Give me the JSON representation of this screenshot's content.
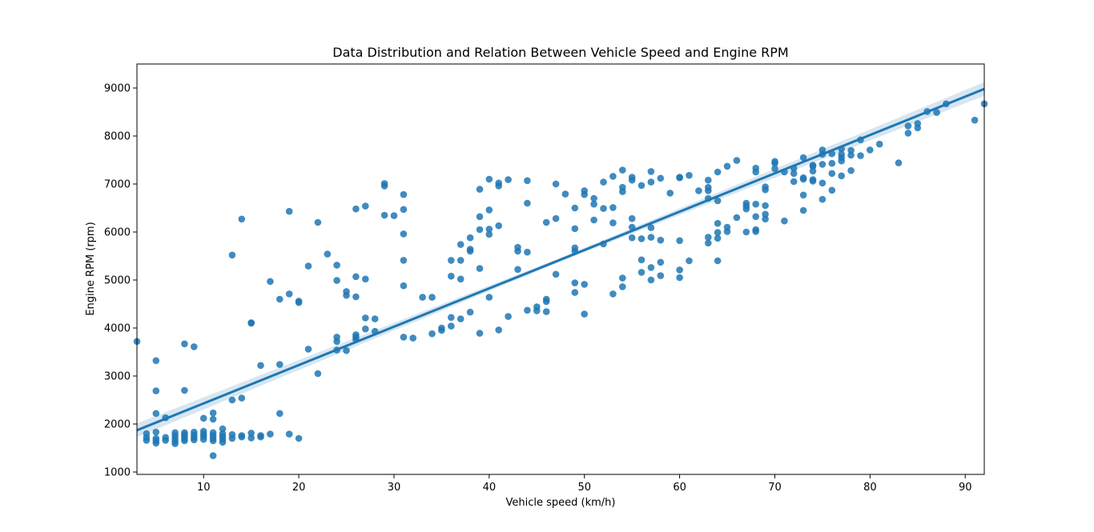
{
  "chart_data": {
    "type": "scatter",
    "title": "Data Distribution and Relation Between Vehicle Speed and Engine RPM",
    "xlabel": "Vehicle speed (km/h)",
    "ylabel": "Engine RPM (rpm)",
    "xlim": [
      3,
      92
    ],
    "ylim": [
      950,
      9500
    ],
    "xticks": [
      10,
      20,
      30,
      40,
      50,
      60,
      70,
      80,
      90
    ],
    "yticks": [
      1000,
      2000,
      3000,
      4000,
      5000,
      6000,
      7000,
      8000,
      9000
    ],
    "grid": false,
    "colors": {
      "points": "#1f77b4",
      "line": "#1f77b4",
      "band": "#1f77b4"
    },
    "regression": {
      "x": [
        3,
        92
      ],
      "y": [
        1870,
        8980
      ]
    },
    "points": [
      [
        3,
        3720
      ],
      [
        4,
        1800
      ],
      [
        4,
        1720
      ],
      [
        4,
        1660
      ],
      [
        5,
        3320
      ],
      [
        5,
        2690
      ],
      [
        5,
        2220
      ],
      [
        5,
        1830
      ],
      [
        5,
        1700
      ],
      [
        5,
        1650
      ],
      [
        5,
        1600
      ],
      [
        6,
        2130
      ],
      [
        6,
        1720
      ],
      [
        6,
        1660
      ],
      [
        7,
        1820
      ],
      [
        7,
        1760
      ],
      [
        7,
        1700
      ],
      [
        7,
        1640
      ],
      [
        7,
        1590
      ],
      [
        8,
        3670
      ],
      [
        8,
        2700
      ],
      [
        8,
        1820
      ],
      [
        8,
        1780
      ],
      [
        8,
        1740
      ],
      [
        8,
        1690
      ],
      [
        8,
        1650
      ],
      [
        9,
        3610
      ],
      [
        9,
        1830
      ],
      [
        9,
        1770
      ],
      [
        9,
        1720
      ],
      [
        9,
        1670
      ],
      [
        10,
        2120
      ],
      [
        10,
        1850
      ],
      [
        10,
        1790
      ],
      [
        10,
        1740
      ],
      [
        10,
        1680
      ],
      [
        11,
        2230
      ],
      [
        11,
        2100
      ],
      [
        11,
        1820
      ],
      [
        11,
        1760
      ],
      [
        11,
        1700
      ],
      [
        11,
        1650
      ],
      [
        11,
        1340
      ],
      [
        12,
        1900
      ],
      [
        12,
        1800
      ],
      [
        12,
        1740
      ],
      [
        12,
        1680
      ],
      [
        12,
        1620
      ],
      [
        13,
        5520
      ],
      [
        13,
        2500
      ],
      [
        13,
        1780
      ],
      [
        13,
        1700
      ],
      [
        14,
        6270
      ],
      [
        14,
        2540
      ],
      [
        14,
        1760
      ],
      [
        14,
        1730
      ],
      [
        15,
        4110
      ],
      [
        15,
        4100
      ],
      [
        15,
        1810
      ],
      [
        15,
        1710
      ],
      [
        16,
        3220
      ],
      [
        16,
        1760
      ],
      [
        16,
        1730
      ],
      [
        17,
        4970
      ],
      [
        17,
        1790
      ],
      [
        18,
        4600
      ],
      [
        18,
        3240
      ],
      [
        18,
        2220
      ],
      [
        19,
        6430
      ],
      [
        19,
        4710
      ],
      [
        19,
        1790
      ],
      [
        20,
        4560
      ],
      [
        20,
        4530
      ],
      [
        20,
        1700
      ],
      [
        21,
        5290
      ],
      [
        21,
        3560
      ],
      [
        22,
        6200
      ],
      [
        22,
        3050
      ],
      [
        23,
        5540
      ],
      [
        24,
        5310
      ],
      [
        24,
        4990
      ],
      [
        24,
        3810
      ],
      [
        24,
        3720
      ],
      [
        24,
        3540
      ],
      [
        25,
        4760
      ],
      [
        25,
        4680
      ],
      [
        25,
        3530
      ],
      [
        26,
        6480
      ],
      [
        26,
        5070
      ],
      [
        26,
        4650
      ],
      [
        26,
        3860
      ],
      [
        26,
        3810
      ],
      [
        26,
        3760
      ],
      [
        27,
        6540
      ],
      [
        27,
        5020
      ],
      [
        27,
        4210
      ],
      [
        27,
        3980
      ],
      [
        28,
        4190
      ],
      [
        28,
        3930
      ],
      [
        29,
        7010
      ],
      [
        29,
        6960
      ],
      [
        29,
        6350
      ],
      [
        30,
        6340
      ],
      [
        31,
        6780
      ],
      [
        31,
        6470
      ],
      [
        31,
        5960
      ],
      [
        31,
        5410
      ],
      [
        31,
        4880
      ],
      [
        31,
        3810
      ],
      [
        32,
        3790
      ],
      [
        33,
        4640
      ],
      [
        34,
        4640
      ],
      [
        34,
        3880
      ],
      [
        35,
        4000
      ],
      [
        35,
        3950
      ],
      [
        36,
        5410
      ],
      [
        36,
        5080
      ],
      [
        36,
        4220
      ],
      [
        36,
        4040
      ],
      [
        37,
        5740
      ],
      [
        37,
        5410
      ],
      [
        37,
        5020
      ],
      [
        37,
        4190
      ],
      [
        38,
        5880
      ],
      [
        38,
        5640
      ],
      [
        38,
        5600
      ],
      [
        38,
        4330
      ],
      [
        39,
        6890
      ],
      [
        39,
        6320
      ],
      [
        39,
        6050
      ],
      [
        39,
        5240
      ],
      [
        39,
        3890
      ],
      [
        40,
        7100
      ],
      [
        40,
        6460
      ],
      [
        40,
        6060
      ],
      [
        40,
        5950
      ],
      [
        40,
        4640
      ],
      [
        41,
        7020
      ],
      [
        41,
        6960
      ],
      [
        41,
        6130
      ],
      [
        41,
        3960
      ],
      [
        42,
        7090
      ],
      [
        42,
        4240
      ],
      [
        43,
        5680
      ],
      [
        43,
        5600
      ],
      [
        43,
        5220
      ],
      [
        44,
        7070
      ],
      [
        44,
        6600
      ],
      [
        44,
        5580
      ],
      [
        44,
        4370
      ],
      [
        45,
        4440
      ],
      [
        45,
        4360
      ],
      [
        46,
        6200
      ],
      [
        46,
        4600
      ],
      [
        46,
        4550
      ],
      [
        46,
        4340
      ],
      [
        47,
        7000
      ],
      [
        47,
        6280
      ],
      [
        47,
        5120
      ],
      [
        48,
        6790
      ],
      [
        49,
        6500
      ],
      [
        49,
        6070
      ],
      [
        49,
        5670
      ],
      [
        49,
        5600
      ],
      [
        49,
        4940
      ],
      [
        49,
        4740
      ],
      [
        50,
        6860
      ],
      [
        50,
        6780
      ],
      [
        50,
        4910
      ],
      [
        50,
        4290
      ],
      [
        51,
        6700
      ],
      [
        51,
        6580
      ],
      [
        51,
        6250
      ],
      [
        52,
        7040
      ],
      [
        52,
        6490
      ],
      [
        52,
        5750
      ],
      [
        53,
        7160
      ],
      [
        53,
        6510
      ],
      [
        53,
        6190
      ],
      [
        53,
        4710
      ],
      [
        54,
        7290
      ],
      [
        54,
        6930
      ],
      [
        54,
        6840
      ],
      [
        54,
        5040
      ],
      [
        54,
        4860
      ],
      [
        55,
        7140
      ],
      [
        55,
        7080
      ],
      [
        55,
        6280
      ],
      [
        55,
        6100
      ],
      [
        55,
        5880
      ],
      [
        56,
        6970
      ],
      [
        56,
        5860
      ],
      [
        56,
        5420
      ],
      [
        56,
        5160
      ],
      [
        57,
        7260
      ],
      [
        57,
        7040
      ],
      [
        57,
        6090
      ],
      [
        57,
        5890
      ],
      [
        57,
        5260
      ],
      [
        57,
        5000
      ],
      [
        58,
        7120
      ],
      [
        58,
        5830
      ],
      [
        58,
        5370
      ],
      [
        58,
        5090
      ],
      [
        59,
        6810
      ],
      [
        60,
        7130
      ],
      [
        60,
        7140
      ],
      [
        60,
        5820
      ],
      [
        60,
        5210
      ],
      [
        60,
        5050
      ],
      [
        61,
        7180
      ],
      [
        61,
        5400
      ],
      [
        62,
        6860
      ],
      [
        63,
        7080
      ],
      [
        63,
        6930
      ],
      [
        63,
        6860
      ],
      [
        63,
        6700
      ],
      [
        63,
        5890
      ],
      [
        63,
        5770
      ],
      [
        64,
        7250
      ],
      [
        64,
        6650
      ],
      [
        64,
        6180
      ],
      [
        64,
        5990
      ],
      [
        64,
        5870
      ],
      [
        64,
        5400
      ],
      [
        65,
        7370
      ],
      [
        65,
        6100
      ],
      [
        65,
        6010
      ],
      [
        66,
        7490
      ],
      [
        66,
        6300
      ],
      [
        67,
        6600
      ],
      [
        67,
        6540
      ],
      [
        67,
        6480
      ],
      [
        67,
        6000
      ],
      [
        68,
        7330
      ],
      [
        68,
        7250
      ],
      [
        68,
        6580
      ],
      [
        68,
        6320
      ],
      [
        68,
        6050
      ],
      [
        68,
        6010
      ],
      [
        69,
        6940
      ],
      [
        69,
        6880
      ],
      [
        69,
        6550
      ],
      [
        69,
        6370
      ],
      [
        69,
        6270
      ],
      [
        70,
        7470
      ],
      [
        70,
        7430
      ],
      [
        70,
        7320
      ],
      [
        71,
        7250
      ],
      [
        71,
        6230
      ],
      [
        72,
        7330
      ],
      [
        72,
        7220
      ],
      [
        72,
        7050
      ],
      [
        73,
        7550
      ],
      [
        73,
        7130
      ],
      [
        73,
        7100
      ],
      [
        73,
        6770
      ],
      [
        73,
        6450
      ],
      [
        74,
        7390
      ],
      [
        74,
        7370
      ],
      [
        74,
        7270
      ],
      [
        74,
        7090
      ],
      [
        74,
        7060
      ],
      [
        75,
        7710
      ],
      [
        75,
        7620
      ],
      [
        75,
        7410
      ],
      [
        75,
        7020
      ],
      [
        75,
        6680
      ],
      [
        76,
        7630
      ],
      [
        76,
        7430
      ],
      [
        76,
        7220
      ],
      [
        76,
        6870
      ],
      [
        77,
        7730
      ],
      [
        77,
        7620
      ],
      [
        77,
        7550
      ],
      [
        77,
        7480
      ],
      [
        77,
        7170
      ],
      [
        78,
        7700
      ],
      [
        78,
        7600
      ],
      [
        78,
        7280
      ],
      [
        79,
        7920
      ],
      [
        79,
        7590
      ],
      [
        80,
        7710
      ],
      [
        81,
        7830
      ],
      [
        83,
        7440
      ],
      [
        84,
        8210
      ],
      [
        84,
        8060
      ],
      [
        85,
        8260
      ],
      [
        85,
        8170
      ],
      [
        86,
        8510
      ],
      [
        87,
        8490
      ],
      [
        88,
        8670
      ],
      [
        91,
        8330
      ],
      [
        92,
        8670
      ]
    ]
  }
}
